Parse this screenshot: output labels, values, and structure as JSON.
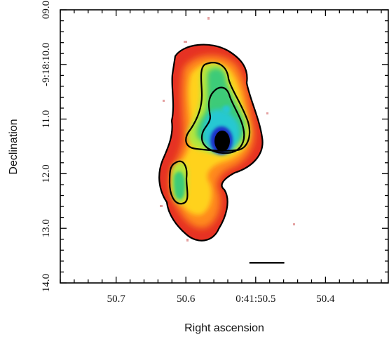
{
  "chart_data": {
    "type": "heatmap",
    "title": "",
    "xlabel": "Right ascension",
    "ylabel": "Declination",
    "x_axis": {
      "direction": "decreasing-to-right",
      "range_s": [
        50.78,
        50.31
      ],
      "ticks": [
        {
          "value": 50.7,
          "label": "50.7"
        },
        {
          "value": 50.6,
          "label": "50.6"
        },
        {
          "value": 50.5,
          "label": "0:41:50.5"
        },
        {
          "value": 50.4,
          "label": "50.4"
        }
      ],
      "minor_step": 0.02
    },
    "y_axis": {
      "direction": "decreasing-upward",
      "range_arcsec": [
        14.0,
        9.0
      ],
      "ticks": [
        {
          "value": 9.0,
          "label": "09.0"
        },
        {
          "value": 10.0,
          "label": "-9:18:10.0"
        },
        {
          "value": 11.0,
          "label": "11.0"
        },
        {
          "value": 12.0,
          "label": "12.0"
        },
        {
          "value": 13.0,
          "label": "13.0"
        },
        {
          "value": 14.0,
          "label": "14.0"
        }
      ],
      "minor_step": 0.2
    },
    "colormap": [
      "#e63223",
      "#ff8a1e",
      "#ffd21e",
      "#b4e63c",
      "#3ccb78",
      "#28c8d2",
      "#1e32c8",
      "#000000"
    ],
    "emission_peak": {
      "ra_s": 50.519,
      "dec_arcsec": 11.39
    },
    "scale_bar": {
      "ra_start_s": 50.509,
      "ra_end_s": 50.459,
      "dec_arcsec": 13.63
    },
    "contour_levels": 3,
    "grid": false,
    "legend": "none"
  }
}
